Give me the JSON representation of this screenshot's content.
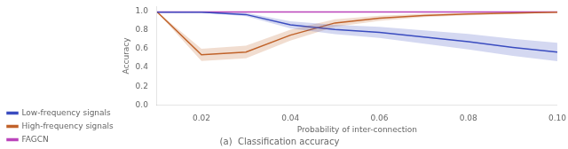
{
  "chart_data": {
    "type": "line",
    "title": "(a)  Classification accuracy",
    "x_label": "Probability of inter-connection",
    "y_label": "Accuracy",
    "x": [
      0.01,
      0.02,
      0.03,
      0.04,
      0.05,
      0.06,
      0.07,
      0.08,
      0.09,
      0.1
    ],
    "series": [
      {
        "name": "Low-frequency signals",
        "color": "#3a4cc0",
        "values": [
          0.99,
          0.99,
          0.965,
          0.855,
          0.805,
          0.775,
          0.725,
          0.675,
          0.615,
          0.565
        ],
        "std": [
          0.003,
          0.004,
          0.018,
          0.038,
          0.05,
          0.06,
          0.072,
          0.082,
          0.09,
          0.098
        ]
      },
      {
        "name": "High-frequency signals",
        "color": "#c1622a",
        "values": [
          0.995,
          0.535,
          0.565,
          0.745,
          0.875,
          0.925,
          0.955,
          0.97,
          0.98,
          0.99
        ],
        "std": [
          0.003,
          0.065,
          0.068,
          0.058,
          0.04,
          0.028,
          0.018,
          0.012,
          0.008,
          0.004
        ]
      },
      {
        "name": "FAGCN",
        "color": "#bb44bb",
        "values": [
          0.993,
          0.993,
          0.993,
          0.993,
          0.993,
          0.993,
          0.993,
          0.993,
          0.993,
          0.993
        ],
        "std": [
          0.002,
          0.002,
          0.002,
          0.002,
          0.002,
          0.002,
          0.002,
          0.002,
          0.002,
          0.002
        ]
      }
    ],
    "xlim": [
      0.01,
      0.1
    ],
    "xticks": [
      0.02,
      0.04,
      0.06,
      0.08,
      {
        "value": 0.1,
        "label": "0.10"
      }
    ],
    "ylim": [
      0.0,
      1.05
    ],
    "yticks": [
      {
        "value": 0.0,
        "label": "0.0"
      },
      0.2,
      0.4,
      0.6,
      0.8,
      {
        "value": 1.0,
        "label": "1.0"
      }
    ],
    "grid": false,
    "legend": "lower left"
  }
}
